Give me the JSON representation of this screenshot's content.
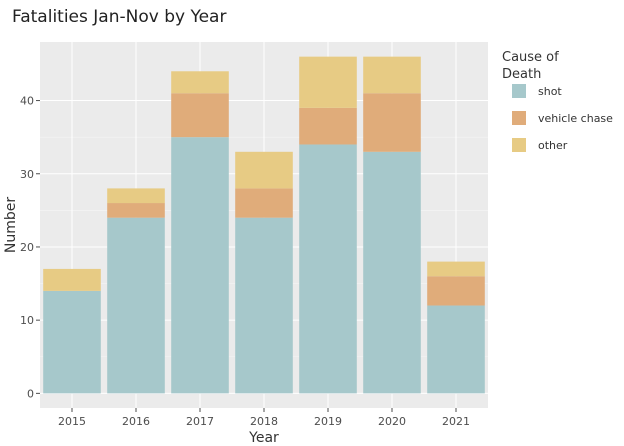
{
  "chart_data": {
    "type": "bar",
    "stacked": true,
    "title": "Fatalities Jan-Nov by Year",
    "xlabel": "Year",
    "ylabel": "Number",
    "categories": [
      "2015",
      "2016",
      "2017",
      "2018",
      "2019",
      "2020",
      "2021"
    ],
    "series": [
      {
        "name": "shot",
        "values": [
          14,
          24,
          35,
          24,
          34,
          33,
          12
        ],
        "color": "#a6c8cb"
      },
      {
        "name": "vehicle chase",
        "values": [
          0,
          2,
          6,
          4,
          5,
          8,
          4
        ],
        "color": "#e0ac7a"
      },
      {
        "name": "other",
        "values": [
          3,
          2,
          3,
          5,
          7,
          5,
          2
        ],
        "color": "#e7cb84"
      }
    ],
    "ylim": [
      -2,
      48
    ],
    "yticks": [
      0,
      10,
      20,
      30,
      40
    ],
    "grid": true,
    "background": "#ebebeb",
    "legend": {
      "title_lines": [
        "Cause of",
        "Death"
      ],
      "placement": "right"
    }
  }
}
